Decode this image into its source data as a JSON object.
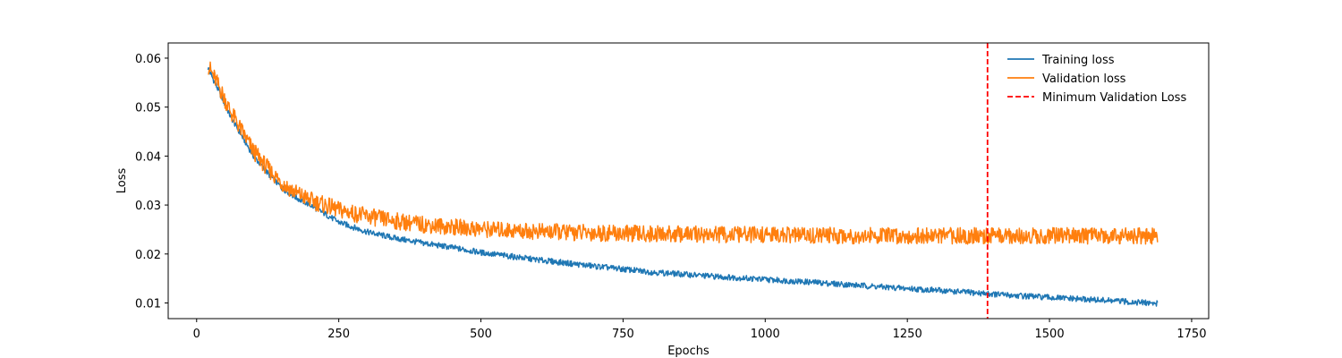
{
  "chart_data": {
    "type": "line",
    "title": "",
    "xlabel": "Epochs",
    "ylabel": "Loss",
    "xlim": [
      -50,
      1780
    ],
    "ylim": [
      0.0068,
      0.0631
    ],
    "x_ticks": [
      0,
      250,
      500,
      750,
      1000,
      1250,
      1500,
      1750
    ],
    "y_ticks": [
      0.01,
      0.02,
      0.03,
      0.04,
      0.05,
      0.06
    ],
    "grid": false,
    "legend_position": "top-right",
    "series": [
      {
        "name": "Training loss",
        "color": "#1f77b4",
        "style": "solid",
        "x": [
          20,
          40,
          60,
          80,
          100,
          125,
          150,
          175,
          200,
          250,
          300,
          350,
          400,
          450,
          500,
          600,
          700,
          800,
          900,
          1000,
          1100,
          1200,
          1300,
          1390,
          1400,
          1500,
          1600,
          1690
        ],
        "y": [
          0.058,
          0.053,
          0.048,
          0.044,
          0.04,
          0.0365,
          0.0335,
          0.0315,
          0.03,
          0.0265,
          0.0245,
          0.0232,
          0.0222,
          0.0213,
          0.0203,
          0.0188,
          0.0175,
          0.0163,
          0.0155,
          0.0148,
          0.0141,
          0.0133,
          0.0126,
          0.0119,
          0.0118,
          0.0111,
          0.0105,
          0.0099
        ]
      },
      {
        "name": "Validation loss",
        "color": "#ff7f0e",
        "style": "solid",
        "x": [
          20,
          40,
          60,
          80,
          100,
          125,
          150,
          175,
          200,
          250,
          300,
          350,
          400,
          450,
          500,
          600,
          700,
          800,
          900,
          1000,
          1100,
          1200,
          1300,
          1400,
          1500,
          1600,
          1690
        ],
        "y": [
          0.0585,
          0.054,
          0.049,
          0.045,
          0.041,
          0.0375,
          0.0345,
          0.0325,
          0.031,
          0.029,
          0.0277,
          0.0267,
          0.026,
          0.0255,
          0.0251,
          0.0246,
          0.0243,
          0.0241,
          0.024,
          0.0239,
          0.0238,
          0.0237,
          0.0237,
          0.0237,
          0.0237,
          0.0237,
          0.0237
        ]
      }
    ],
    "vlines": [
      {
        "name": "Minimum Validation Loss",
        "x": 1391,
        "color": "#ff0000",
        "style": "dashed"
      }
    ]
  }
}
